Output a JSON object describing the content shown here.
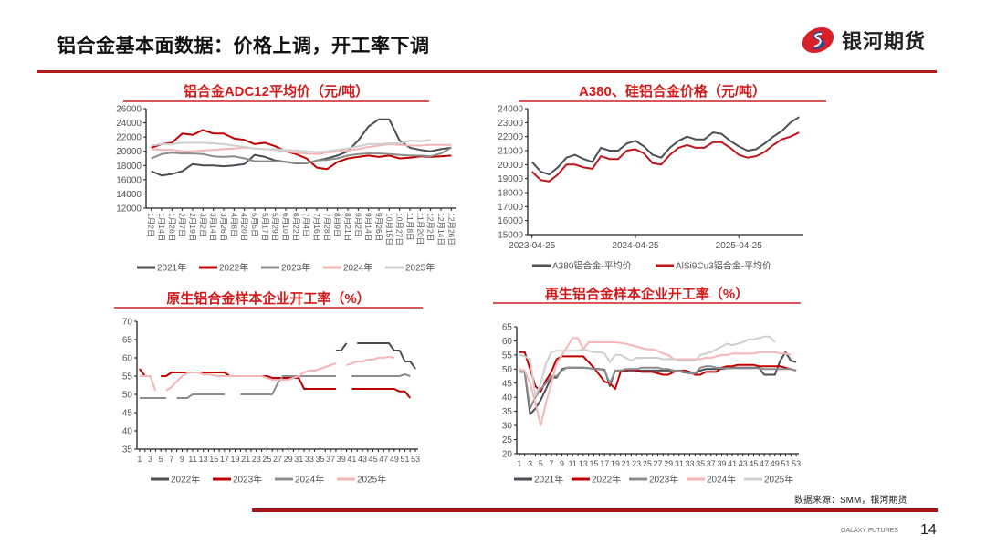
{
  "header": {
    "title": "铝合金基本面数据：价格上调，开工率下调",
    "logo_text": "银河期货"
  },
  "footer": {
    "source": "数据来源：SMM，银河期货",
    "brand": "GALAXY FUTURES",
    "page_number": "14"
  },
  "colors": {
    "accent": "#b01c1c",
    "title_red": "#d21a1a"
  },
  "chart_data": [
    {
      "type": "line",
      "title": "铝合金ADC12平均价（元/吨）",
      "ylim": [
        12000,
        26000
      ],
      "yticks": [
        "12000",
        "14000",
        "16000",
        "18000",
        "20000",
        "22000",
        "24000",
        "26000"
      ],
      "categories": [
        "1月2日",
        "1月14日",
        "1月26日",
        "2月7日",
        "2月19日",
        "3月2日",
        "3月14日",
        "3月26日",
        "4月8日",
        "4月20日",
        "5月5日",
        "5月17日",
        "5月29日",
        "6月10日",
        "6月22日",
        "7月4日",
        "7月16日",
        "7月28日",
        "8月9日",
        "8月21日",
        "9月2日",
        "9月14日",
        "9月26日",
        "10月15日",
        "10月27日",
        "11月8日",
        "11月20日",
        "12月2日",
        "12月14日",
        "12月26日"
      ],
      "legend": "bottom",
      "series": [
        {
          "name": "2021年",
          "color": "#4a4f55",
          "values": [
            17200,
            16600,
            16800,
            17200,
            18200,
            18000,
            18000,
            17900,
            18000,
            18200,
            19500,
            19200,
            18700,
            18500,
            18300,
            18300,
            18700,
            19000,
            19400,
            20000,
            21500,
            23500,
            24500,
            24500,
            21500,
            20500,
            20200,
            20000,
            20300,
            20500
          ]
        },
        {
          "name": "2022年",
          "color": "#c00000",
          "values": [
            20500,
            21000,
            21200,
            22500,
            22300,
            23000,
            22500,
            22500,
            21800,
            21600,
            21000,
            21200,
            20700,
            20000,
            19600,
            19000,
            17700,
            17500,
            18500,
            19000,
            19200,
            19400,
            19200,
            19400,
            19000,
            19100,
            19300,
            19200,
            19300,
            19400
          ]
        },
        {
          "name": "2023年",
          "color": "#8c8c8c",
          "values": [
            19000,
            19600,
            19800,
            19700,
            19700,
            19600,
            19300,
            19200,
            19300,
            19000,
            18600,
            18600,
            18600,
            18500,
            18400,
            18300,
            18700,
            18800,
            19000,
            19400,
            19600,
            19700,
            19700,
            19600,
            19500,
            19400,
            19400,
            19300,
            19700,
            20500
          ]
        },
        {
          "name": "2024年",
          "color": "#f4b6b6",
          "values": [
            20300,
            20200,
            20200,
            20000,
            20000,
            20100,
            20200,
            20300,
            20400,
            20500,
            20400,
            20300,
            20200,
            20000,
            19800,
            19700,
            19600,
            19800,
            20000,
            20100,
            20300,
            20600,
            20800,
            21000,
            20900,
            20800,
            20800,
            20900,
            20900,
            20900
          ]
        },
        {
          "name": "2025年",
          "color": "#cfcfcf",
          "values": [
            20800,
            21000,
            21000,
            21200,
            21200,
            21200,
            21100,
            21000,
            20800,
            20600,
            20400,
            20300,
            20300,
            20200,
            20100,
            20000,
            19900,
            20000,
            20200,
            20400,
            20700,
            21000,
            21000,
            21100,
            21100,
            21500,
            21400,
            21600,
            null,
            null
          ]
        }
      ]
    },
    {
      "type": "line",
      "title": "A380、硅铝合金价格（元/吨）",
      "ylim": [
        15000,
        24000
      ],
      "yticks": [
        "15000",
        "16000",
        "17000",
        "18000",
        "19000",
        "20000",
        "21000",
        "22000",
        "23000",
        "24000"
      ],
      "x": [
        "2023-04",
        "2023-05",
        "2023-06",
        "2023-07",
        "2023-08",
        "2023-09",
        "2023-10",
        "2023-11",
        "2023-12",
        "2024-01",
        "2024-02",
        "2024-03",
        "2024-04",
        "2024-05",
        "2024-06",
        "2024-07",
        "2024-08",
        "2024-09",
        "2024-10",
        "2024-11",
        "2024-12",
        "2025-01",
        "2025-02",
        "2025-03",
        "2025-04",
        "2025-05",
        "2025-06",
        "2025-07",
        "2025-08",
        "2025-09",
        "2025-10",
        "2025-11"
      ],
      "xticks": [
        "2023-04-25",
        "2024-04-25",
        "2025-04-25"
      ],
      "xtick_index": [
        0,
        12,
        24
      ],
      "legend": "bottom",
      "series": [
        {
          "name": "A380铝合金-平均价",
          "color": "#4a5055",
          "values": [
            20200,
            19500,
            19300,
            19800,
            20500,
            20700,
            20400,
            20200,
            21200,
            21000,
            21000,
            21500,
            21700,
            21300,
            20700,
            20500,
            21200,
            21700,
            22000,
            21800,
            21800,
            22300,
            22200,
            21700,
            21300,
            21000,
            21100,
            21500,
            22000,
            22400,
            23000,
            23400
          ]
        },
        {
          "name": "AlSi9Cu3铝合金-平均价",
          "color": "#c0151b",
          "values": [
            19500,
            18900,
            18800,
            19300,
            20000,
            20000,
            19800,
            19700,
            20600,
            20400,
            20400,
            21000,
            21100,
            20800,
            20100,
            20000,
            20700,
            21200,
            21400,
            21200,
            21200,
            21600,
            21600,
            21200,
            20700,
            20500,
            20600,
            20900,
            21400,
            21800,
            22000,
            22300
          ]
        }
      ]
    },
    {
      "type": "line",
      "title": "原生铝合金样本企业开工率（%）",
      "ylim": [
        35,
        70
      ],
      "yticks": [
        "35",
        "40",
        "45",
        "50",
        "55",
        "60",
        "65",
        "70"
      ],
      "categories": [
        "1",
        "2",
        "3",
        "4",
        "5",
        "6",
        "7",
        "8",
        "9",
        "10",
        "11",
        "12",
        "13",
        "14",
        "15",
        "16",
        "17",
        "18",
        "19",
        "20",
        "21",
        "22",
        "23",
        "24",
        "25",
        "26",
        "27",
        "28",
        "29",
        "30",
        "31",
        "32",
        "33",
        "34",
        "35",
        "36",
        "37",
        "38",
        "39",
        "40",
        "41",
        "42",
        "43",
        "44",
        "45",
        "46",
        "47",
        "48",
        "49",
        "50",
        "51",
        "52",
        "53"
      ],
      "legend": "bottom",
      "series": [
        {
          "name": "2022年",
          "color": "#4a4f55",
          "values": [
            null,
            null,
            null,
            null,
            null,
            null,
            null,
            null,
            null,
            null,
            null,
            null,
            null,
            null,
            null,
            null,
            null,
            null,
            null,
            null,
            null,
            null,
            null,
            null,
            null,
            null,
            null,
            null,
            null,
            null,
            null,
            null,
            null,
            null,
            null,
            null,
            null,
            62,
            62,
            64,
            null,
            64,
            64,
            64,
            64,
            64,
            64,
            64,
            62,
            62,
            59,
            59,
            57
          ]
        },
        {
          "name": "2023年",
          "color": "#c00000",
          "values": [
            57,
            55,
            null,
            null,
            55,
            55,
            56,
            56,
            56,
            56,
            56,
            56,
            56,
            56,
            56,
            56,
            56,
            55,
            55,
            55,
            55,
            55,
            55,
            55,
            55,
            54.5,
            54.5,
            54.5,
            54.5,
            54.5,
            54.5,
            51.5,
            51.5,
            51.5,
            51.5,
            51.5,
            51.5,
            51.5,
            null,
            null,
            51.5,
            51.5,
            51.5,
            51.5,
            51.5,
            51.5,
            51.5,
            51.5,
            51.5,
            50.8,
            50.8,
            49,
            null
          ]
        },
        {
          "name": "2024年",
          "color": "#8c8c8c",
          "values": [
            49,
            49,
            49,
            49,
            49,
            49,
            null,
            49,
            49,
            49,
            50,
            50,
            50,
            50,
            50,
            50,
            50,
            null,
            null,
            50,
            50,
            50,
            50,
            50,
            50,
            50,
            53,
            55,
            55,
            55,
            55,
            55,
            55,
            55,
            55,
            55,
            55,
            55,
            null,
            null,
            55,
            55,
            55,
            55,
            55,
            55,
            55,
            55,
            55,
            55,
            55.5,
            55,
            null
          ]
        },
        {
          "name": "2025年",
          "color": "#f4b6b6",
          "values": [
            55,
            55,
            55,
            51,
            null,
            51,
            52,
            53.5,
            55,
            55.8,
            56,
            56,
            55.5,
            55.5,
            55.2,
            55,
            55,
            55,
            55,
            55,
            55,
            55,
            55,
            55,
            54.5,
            54,
            54,
            54,
            54,
            54.5,
            55,
            56,
            56.5,
            56.5,
            57,
            57.5,
            58,
            58.5,
            null,
            58,
            58.5,
            59,
            59,
            59.5,
            59.5,
            60,
            60,
            60.3,
            60,
            null,
            null,
            null,
            null
          ]
        }
      ]
    },
    {
      "type": "line",
      "title": "再生铝合金样本企业开工率（%）",
      "ylim": [
        20,
        65
      ],
      "yticks": [
        "20",
        "25",
        "30",
        "35",
        "40",
        "45",
        "50",
        "55",
        "60",
        "65"
      ],
      "categories": [
        "1",
        "2",
        "3",
        "4",
        "5",
        "6",
        "7",
        "8",
        "9",
        "10",
        "11",
        "12",
        "13",
        "14",
        "15",
        "16",
        "17",
        "18",
        "19",
        "20",
        "21",
        "22",
        "23",
        "24",
        "25",
        "26",
        "27",
        "28",
        "29",
        "30",
        "31",
        "32",
        "33",
        "34",
        "35",
        "36",
        "37",
        "38",
        "39",
        "40",
        "41",
        "42",
        "43",
        "44",
        "45",
        "46",
        "47",
        "48",
        "49",
        "50",
        "51",
        "52",
        "53"
      ],
      "legend": "bottom",
      "series": [
        {
          "name": "2021年",
          "color": "#4a4f55",
          "values": [
            49,
            49,
            34,
            36,
            39,
            43,
            47,
            47,
            50,
            50.5,
            50.5,
            50.5,
            50.5,
            50.3,
            50.2,
            50,
            49.8,
            44,
            49.5,
            49.5,
            49.5,
            49.5,
            49.5,
            49.5,
            49.5,
            49.5,
            49.5,
            49.5,
            49.5,
            49.5,
            49.3,
            48.8,
            48.5,
            48.5,
            49.5,
            50,
            50,
            50,
            50,
            50.3,
            50.5,
            50.5,
            50.5,
            50.5,
            50.5,
            50.5,
            48,
            48,
            48,
            53,
            56,
            53,
            52.5
          ]
        },
        {
          "name": "2022年",
          "color": "#c00000",
          "values": [
            56,
            56,
            50,
            44,
            42,
            46,
            49,
            53.5,
            54.5,
            54.5,
            54.5,
            54.5,
            54.5,
            52.5,
            50.5,
            48,
            45.5,
            45,
            43,
            49,
            49.5,
            50,
            49.5,
            49,
            49,
            49,
            48.5,
            48,
            48,
            49,
            49.5,
            49.5,
            49,
            48,
            48,
            49,
            49,
            49,
            50.5,
            51,
            51,
            51.5,
            51.5,
            51.5,
            51.5,
            51,
            51,
            51,
            51,
            51,
            50.5,
            50,
            49.5
          ]
        },
        {
          "name": "2023年",
          "color": "#8c8c8c",
          "values": [
            49,
            49,
            36,
            40,
            43,
            45,
            47.5,
            47.5,
            49.5,
            50.5,
            50.5,
            50.5,
            50.5,
            50.3,
            50,
            50,
            49.5,
            45,
            49.5,
            49.5,
            50,
            50,
            50,
            50.5,
            50.5,
            50.5,
            50.5,
            50,
            50,
            49.5,
            49.5,
            49,
            48.5,
            48.5,
            50.5,
            51,
            51,
            50.5,
            50.3,
            50.3,
            50.3,
            50.3,
            50.3,
            50.3,
            50.3,
            50.3,
            50,
            50,
            50,
            50,
            50,
            50,
            49.5
          ]
        },
        {
          "name": "2024年",
          "color": "#f4b6b6",
          "values": [
            50,
            49.5,
            45,
            38,
            30,
            38,
            45,
            52,
            55,
            58,
            61,
            61,
            57,
            59.5,
            59.5,
            59.5,
            59.5,
            59.5,
            59.5,
            59.3,
            59,
            58.5,
            58,
            57.5,
            57,
            57,
            56.5,
            55.5,
            55,
            53.5,
            53.5,
            53.5,
            53.5,
            53.5,
            53.5,
            54,
            54,
            54.5,
            55,
            55,
            55.5,
            55.5,
            55.5,
            55.5,
            55.5,
            56,
            56,
            56,
            56,
            55.5,
            55.5,
            55,
            null
          ]
        },
        {
          "name": "2025年",
          "color": "#cfcfcf",
          "values": [
            55,
            54.5,
            53.5,
            40.5,
            45,
            52,
            56,
            56.5,
            56.5,
            56.5,
            56.5,
            56.5,
            57,
            56.5,
            56,
            56,
            55.5,
            52.5,
            55,
            55,
            54,
            53,
            54,
            54,
            54,
            54,
            54,
            53.5,
            53.5,
            53.5,
            53,
            53,
            53,
            53,
            55,
            55.5,
            56,
            57,
            58,
            59,
            58.5,
            59,
            59.5,
            60.5,
            60.5,
            61,
            61.5,
            61.5,
            59.5,
            null,
            null,
            null,
            null
          ]
        }
      ]
    }
  ]
}
